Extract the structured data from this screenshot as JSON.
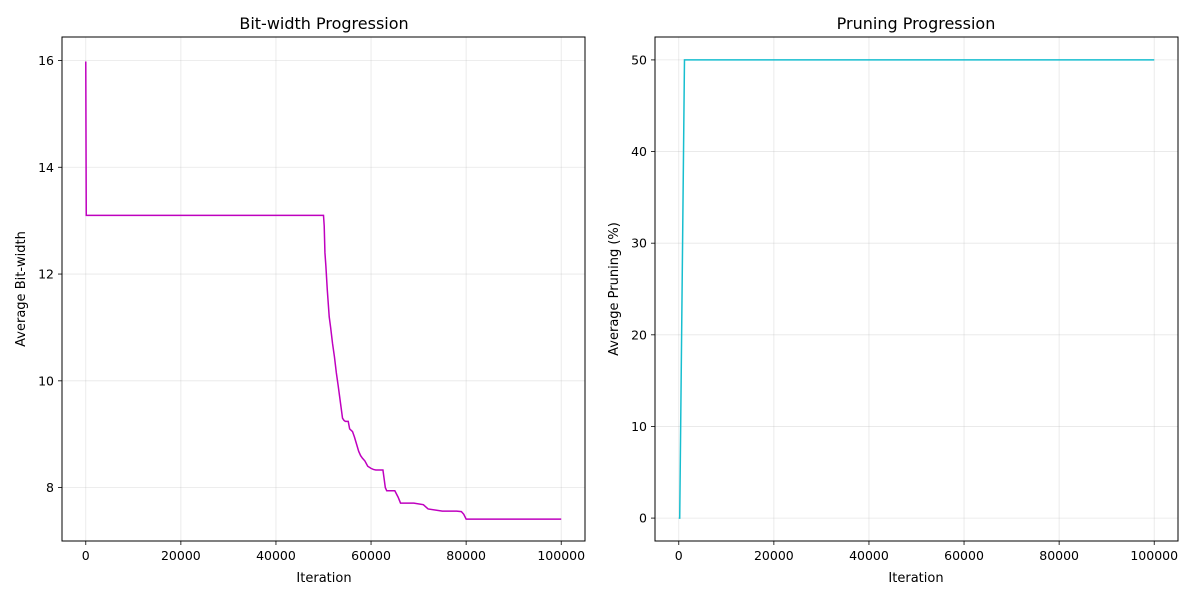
{
  "chart_data": [
    {
      "type": "line",
      "title": "Bit-width Progression",
      "xlabel": "Iteration",
      "ylabel": "Average Bit-width",
      "xlim": [
        -5000,
        105000
      ],
      "ylim": [
        7.0,
        16.44
      ],
      "xticks": [
        "0",
        "20000",
        "40000",
        "60000",
        "80000",
        "100000"
      ],
      "yticks": [
        "8",
        "10",
        "12",
        "14",
        "16"
      ],
      "grid": true,
      "color": "#bf00bf",
      "series": [
        {
          "x": [
            0,
            100,
            200,
            50000,
            50150,
            50300,
            50500,
            50800,
            51200,
            51500,
            51900,
            52300,
            52700,
            53100,
            53400,
            53700,
            54000,
            54300,
            54600,
            54900,
            55200,
            55500,
            56100,
            56500,
            57000,
            57400,
            57800,
            58200,
            58700,
            59300,
            60000,
            60500,
            61000,
            62500,
            62700,
            63000,
            63300,
            65000,
            65700,
            66200,
            67000,
            69000,
            71000,
            72000,
            75000,
            78000,
            79000,
            79500,
            80000,
            100000
          ],
          "y": [
            15.98,
            13.1,
            13.1,
            13.1,
            12.9,
            12.4,
            12.15,
            11.7,
            11.2,
            11.0,
            10.7,
            10.45,
            10.15,
            9.9,
            9.7,
            9.5,
            9.3,
            9.26,
            9.24,
            9.24,
            9.24,
            9.1,
            9.05,
            8.95,
            8.8,
            8.68,
            8.6,
            8.55,
            8.5,
            8.4,
            8.36,
            8.34,
            8.33,
            8.33,
            8.2,
            8.0,
            7.94,
            7.94,
            7.82,
            7.71,
            7.71,
            7.71,
            7.68,
            7.6,
            7.56,
            7.56,
            7.55,
            7.5,
            7.41,
            7.41
          ]
        }
      ]
    },
    {
      "type": "line",
      "title": "Pruning Progression",
      "xlabel": "Iteration",
      "ylabel": "Average Pruning (%)",
      "xlim": [
        -5000,
        105000
      ],
      "ylim": [
        -2.5,
        52.5
      ],
      "xticks": [
        "0",
        "20000",
        "40000",
        "60000",
        "80000",
        "100000"
      ],
      "yticks": [
        "0",
        "10",
        "20",
        "30",
        "40",
        "50"
      ],
      "grid": true,
      "color": "#17becf",
      "series": [
        {
          "x": [
            0,
            200,
            1200,
            100000
          ],
          "y": [
            0,
            0,
            50,
            50
          ]
        }
      ]
    }
  ]
}
